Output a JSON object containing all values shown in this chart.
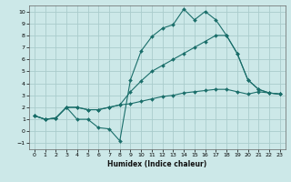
{
  "xlabel": "Humidex (Indice chaleur)",
  "ylabel": "",
  "xlim": [
    -0.5,
    23.5
  ],
  "ylim": [
    -1.5,
    10.5
  ],
  "xticks": [
    0,
    1,
    2,
    3,
    4,
    5,
    6,
    7,
    8,
    9,
    10,
    11,
    12,
    13,
    14,
    15,
    16,
    17,
    18,
    19,
    20,
    21,
    22,
    23
  ],
  "yticks": [
    -1,
    0,
    1,
    2,
    3,
    4,
    5,
    6,
    7,
    8,
    9,
    10
  ],
  "bg_color": "#cce8e8",
  "grid_color": "#aacccc",
  "line_color": "#1a6e6a",
  "lines": [
    {
      "x": [
        0,
        1,
        2,
        3,
        4,
        5,
        6,
        7,
        8,
        9,
        10,
        11,
        12,
        13,
        14,
        15,
        16,
        17,
        18,
        19,
        20,
        21,
        22,
        23
      ],
      "y": [
        1.3,
        1.0,
        1.1,
        2.0,
        1.0,
        1.0,
        0.3,
        0.2,
        -0.8,
        4.3,
        6.7,
        7.9,
        8.6,
        8.9,
        10.2,
        9.3,
        10.0,
        9.3,
        8.0,
        6.5,
        4.3,
        3.5,
        3.2,
        3.1
      ]
    },
    {
      "x": [
        0,
        1,
        2,
        3,
        4,
        5,
        6,
        7,
        8,
        9,
        10,
        11,
        12,
        13,
        14,
        15,
        16,
        17,
        18,
        19,
        20,
        21,
        22,
        23
      ],
      "y": [
        1.3,
        1.0,
        1.1,
        2.0,
        2.0,
        1.8,
        1.8,
        2.0,
        2.2,
        3.3,
        4.2,
        5.0,
        5.5,
        6.0,
        6.5,
        7.0,
        7.5,
        8.0,
        8.0,
        6.5,
        4.3,
        3.5,
        3.2,
        3.1
      ]
    },
    {
      "x": [
        0,
        1,
        2,
        3,
        4,
        5,
        6,
        7,
        8,
        9,
        10,
        11,
        12,
        13,
        14,
        15,
        16,
        17,
        18,
        19,
        20,
        21,
        22,
        23
      ],
      "y": [
        1.3,
        1.0,
        1.1,
        2.0,
        2.0,
        1.8,
        1.8,
        2.0,
        2.2,
        2.3,
        2.5,
        2.7,
        2.9,
        3.0,
        3.2,
        3.3,
        3.4,
        3.5,
        3.5,
        3.3,
        3.1,
        3.3,
        3.2,
        3.1
      ]
    }
  ]
}
